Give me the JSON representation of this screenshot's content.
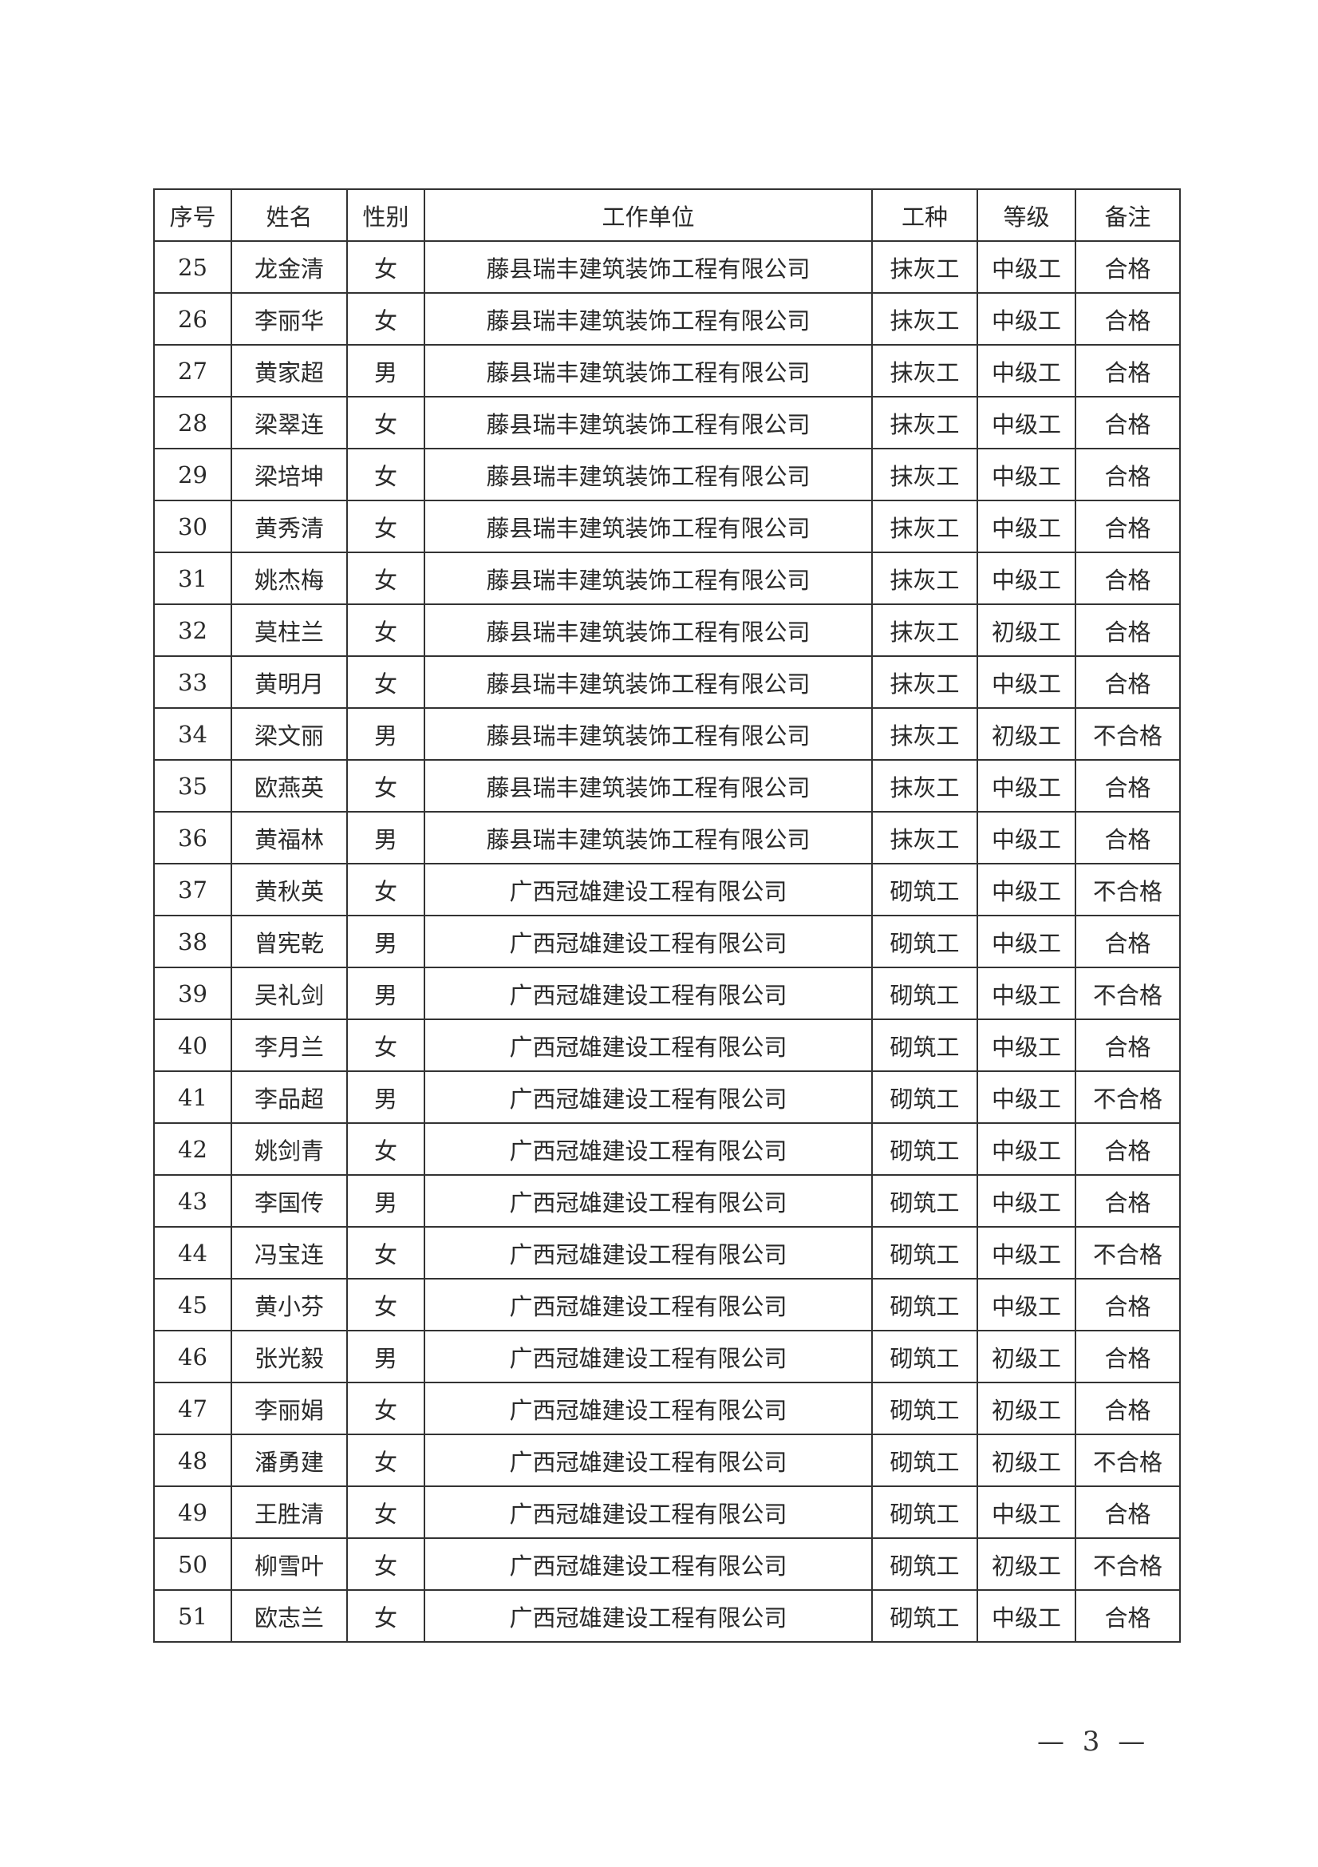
{
  "table": {
    "headers": [
      "序号",
      "姓名",
      "性别",
      "工作单位",
      "工种",
      "等级",
      "备注"
    ],
    "rows": [
      [
        "25",
        "龙金清",
        "女",
        "藤县瑞丰建筑装饰工程有限公司",
        "抹灰工",
        "中级工",
        "合格"
      ],
      [
        "26",
        "李丽华",
        "女",
        "藤县瑞丰建筑装饰工程有限公司",
        "抹灰工",
        "中级工",
        "合格"
      ],
      [
        "27",
        "黄家超",
        "男",
        "藤县瑞丰建筑装饰工程有限公司",
        "抹灰工",
        "中级工",
        "合格"
      ],
      [
        "28",
        "梁翠连",
        "女",
        "藤县瑞丰建筑装饰工程有限公司",
        "抹灰工",
        "中级工",
        "合格"
      ],
      [
        "29",
        "梁培坤",
        "女",
        "藤县瑞丰建筑装饰工程有限公司",
        "抹灰工",
        "中级工",
        "合格"
      ],
      [
        "30",
        "黄秀清",
        "女",
        "藤县瑞丰建筑装饰工程有限公司",
        "抹灰工",
        "中级工",
        "合格"
      ],
      [
        "31",
        "姚杰梅",
        "女",
        "藤县瑞丰建筑装饰工程有限公司",
        "抹灰工",
        "中级工",
        "合格"
      ],
      [
        "32",
        "莫柱兰",
        "女",
        "藤县瑞丰建筑装饰工程有限公司",
        "抹灰工",
        "初级工",
        "合格"
      ],
      [
        "33",
        "黄明月",
        "女",
        "藤县瑞丰建筑装饰工程有限公司",
        "抹灰工",
        "中级工",
        "合格"
      ],
      [
        "34",
        "梁文丽",
        "男",
        "藤县瑞丰建筑装饰工程有限公司",
        "抹灰工",
        "初级工",
        "不合格"
      ],
      [
        "35",
        "欧燕英",
        "女",
        "藤县瑞丰建筑装饰工程有限公司",
        "抹灰工",
        "中级工",
        "合格"
      ],
      [
        "36",
        "黄福林",
        "男",
        "藤县瑞丰建筑装饰工程有限公司",
        "抹灰工",
        "中级工",
        "合格"
      ],
      [
        "37",
        "黄秋英",
        "女",
        "广西冠雄建设工程有限公司",
        "砌筑工",
        "中级工",
        "不合格"
      ],
      [
        "38",
        "曾宪乾",
        "男",
        "广西冠雄建设工程有限公司",
        "砌筑工",
        "中级工",
        "合格"
      ],
      [
        "39",
        "吴礼剑",
        "男",
        "广西冠雄建设工程有限公司",
        "砌筑工",
        "中级工",
        "不合格"
      ],
      [
        "40",
        "李月兰",
        "女",
        "广西冠雄建设工程有限公司",
        "砌筑工",
        "中级工",
        "合格"
      ],
      [
        "41",
        "李品超",
        "男",
        "广西冠雄建设工程有限公司",
        "砌筑工",
        "中级工",
        "不合格"
      ],
      [
        "42",
        "姚剑青",
        "女",
        "广西冠雄建设工程有限公司",
        "砌筑工",
        "中级工",
        "合格"
      ],
      [
        "43",
        "李国传",
        "男",
        "广西冠雄建设工程有限公司",
        "砌筑工",
        "中级工",
        "合格"
      ],
      [
        "44",
        "冯宝连",
        "女",
        "广西冠雄建设工程有限公司",
        "砌筑工",
        "中级工",
        "不合格"
      ],
      [
        "45",
        "黄小芬",
        "女",
        "广西冠雄建设工程有限公司",
        "砌筑工",
        "中级工",
        "合格"
      ],
      [
        "46",
        "张光毅",
        "男",
        "广西冠雄建设工程有限公司",
        "砌筑工",
        "初级工",
        "合格"
      ],
      [
        "47",
        "李丽娟",
        "女",
        "广西冠雄建设工程有限公司",
        "砌筑工",
        "初级工",
        "合格"
      ],
      [
        "48",
        "潘勇建",
        "女",
        "广西冠雄建设工程有限公司",
        "砌筑工",
        "初级工",
        "不合格"
      ],
      [
        "49",
        "王胜清",
        "女",
        "广西冠雄建设工程有限公司",
        "砌筑工",
        "中级工",
        "合格"
      ],
      [
        "50",
        "柳雪叶",
        "女",
        "广西冠雄建设工程有限公司",
        "砌筑工",
        "初级工",
        "不合格"
      ],
      [
        "51",
        "欧志兰",
        "女",
        "广西冠雄建设工程有限公司",
        "砌筑工",
        "中级工",
        "合格"
      ]
    ]
  },
  "footer": {
    "page_number": "— 3 —"
  }
}
